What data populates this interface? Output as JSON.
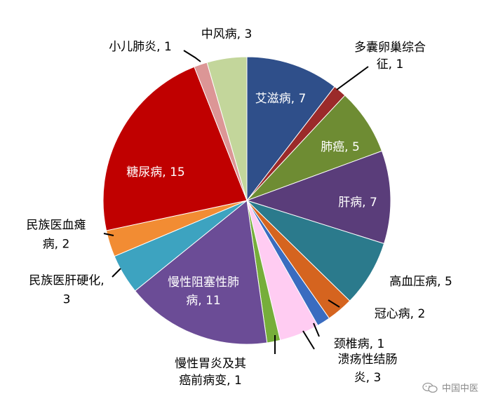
{
  "chart_data": {
    "type": "pie",
    "title": "",
    "label_separator": ", ",
    "slices": [
      {
        "label": "艾滋病",
        "value": 7,
        "color": "#2f4f8a",
        "label_color": "#ffffff"
      },
      {
        "label": "多囊卵巢综合征",
        "value": 1,
        "color": "#9b2a2a",
        "label_color": "#000000",
        "label_lines": [
          "多囊卵巢综合",
          "征, 1"
        ]
      },
      {
        "label": "肺癌",
        "value": 5,
        "color": "#6e8c33",
        "label_color": "#ffffff"
      },
      {
        "label": "肝病",
        "value": 7,
        "color": "#5a3d7a",
        "label_color": "#ffffff"
      },
      {
        "label": "高血压病",
        "value": 5,
        "color": "#2b7a8c",
        "label_color": "#000000"
      },
      {
        "label": "冠心病",
        "value": 2,
        "color": "#d5641f",
        "label_color": "#000000"
      },
      {
        "label": "颈椎病",
        "value": 1,
        "color": "#3a6cc0",
        "label_color": "#000000"
      },
      {
        "label": "溃疡性结肠炎",
        "value": 3,
        "color": "#ffccf2",
        "label_color": "#000000",
        "label_lines": [
          "溃疡性结肠",
          "炎, 3"
        ]
      },
      {
        "label": "慢性胃炎及其癌前病变",
        "value": 1,
        "color": "#76ae3a",
        "label_color": "#000000",
        "label_lines": [
          "慢性胃炎及其",
          "癌前病变, 1"
        ]
      },
      {
        "label": "慢性阻塞性肺病",
        "value": 11,
        "color": "#6b4c96",
        "label_color": "#ffffff",
        "label_lines": [
          "慢性阻塞性肺",
          "病, 11"
        ]
      },
      {
        "label": "民族医肝硬化",
        "value": 3,
        "color": "#3da3c0",
        "label_color": "#000000",
        "label_lines": [
          "民族医肝硬化,",
          "3"
        ]
      },
      {
        "label": "民族医血瘫病",
        "value": 2,
        "color": "#f28c33",
        "label_color": "#000000",
        "label_lines": [
          "民族医血瘫",
          "病, 2"
        ]
      },
      {
        "label": "糖尿病",
        "value": 15,
        "color": "#c00000",
        "label_color": "#ffffff"
      },
      {
        "label": "小儿肺炎",
        "value": 1,
        "color": "#dc9696",
        "label_color": "#000000"
      },
      {
        "label": "中风病",
        "value": 3,
        "color": "#c3d69b",
        "label_color": "#000000"
      }
    ]
  },
  "watermark": {
    "text": "中国中医",
    "icon": "wechat-icon"
  }
}
